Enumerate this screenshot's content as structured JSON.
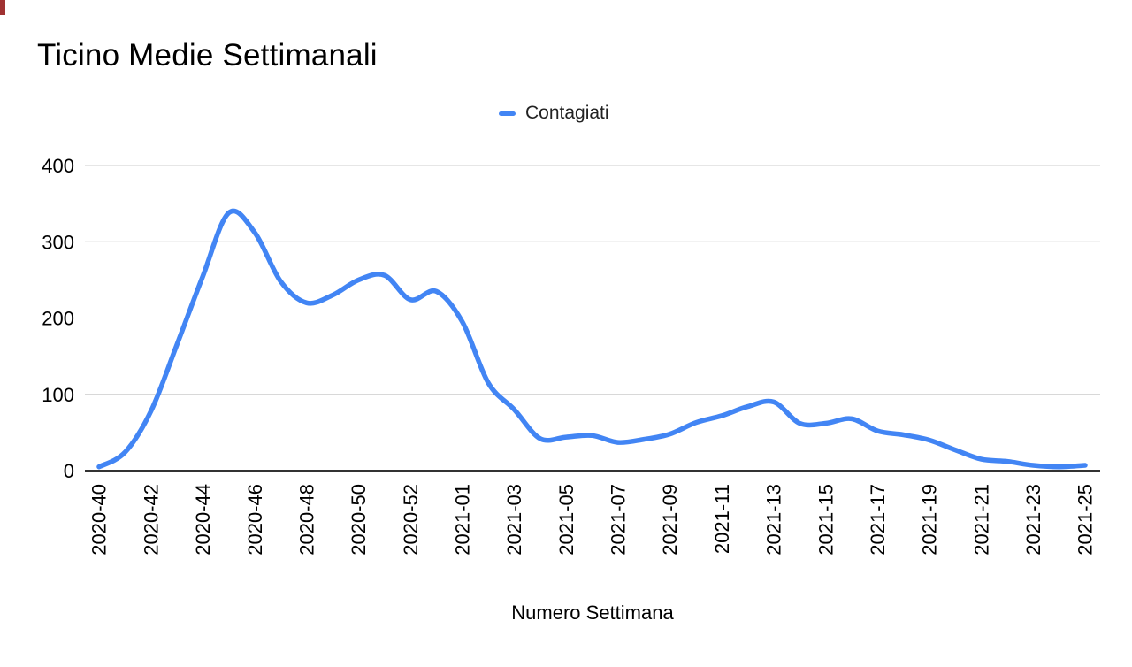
{
  "title": "Ticino Medie Settimanali",
  "legend": {
    "label": "Contagiati",
    "swatch_color": "#4285f4"
  },
  "x_axis_title": "Numero Settimana",
  "colors": {
    "series_line": "#4285f4",
    "gridline": "#cccccc",
    "axis_line": "#333333",
    "tick_text": "#000000",
    "background": "#ffffff"
  },
  "chart_data": {
    "type": "line",
    "title": "Ticino Medie Settimanali",
    "xlabel": "Numero Settimana",
    "ylabel": "",
    "ylim": [
      0,
      400
    ],
    "y_ticks": [
      0,
      100,
      200,
      300,
      400
    ],
    "grid": true,
    "smooth": true,
    "legend_position": "top",
    "x_tick_rotation": -90,
    "x_tick_every": 2,
    "x_tick_labels": [
      "2020-40",
      "2020-42",
      "2020-44",
      "2020-46",
      "2020-48",
      "2020-50",
      "2020-52",
      "2021-01",
      "2021-03",
      "2021-05",
      "2021-07",
      "2021-09",
      "2021-11",
      "2021-13",
      "2021-15",
      "2021-17",
      "2021-19",
      "2021-21",
      "2021-23",
      "2021-25"
    ],
    "categories": [
      "2020-40",
      "2020-41",
      "2020-42",
      "2020-43",
      "2020-44",
      "2020-45",
      "2020-46",
      "2020-47",
      "2020-48",
      "2020-49",
      "2020-50",
      "2020-51",
      "2020-52",
      "2020-53",
      "2021-01",
      "2021-02",
      "2021-03",
      "2021-04",
      "2021-05",
      "2021-06",
      "2021-07",
      "2021-08",
      "2021-09",
      "2021-10",
      "2021-11",
      "2021-12",
      "2021-13",
      "2021-14",
      "2021-15",
      "2021-16",
      "2021-17",
      "2021-18",
      "2021-19",
      "2021-20",
      "2021-21",
      "2021-22",
      "2021-23",
      "2021-24",
      "2021-25"
    ],
    "series": [
      {
        "name": "Contagiati",
        "color": "#4285f4",
        "values": [
          5,
          24,
          78,
          165,
          255,
          338,
          312,
          248,
          220,
          230,
          250,
          256,
          224,
          235,
          195,
          115,
          80,
          42,
          44,
          46,
          37,
          41,
          48,
          63,
          72,
          84,
          90,
          62,
          62,
          68,
          52,
          47,
          40,
          27,
          15,
          12,
          7,
          5,
          7
        ]
      }
    ]
  }
}
